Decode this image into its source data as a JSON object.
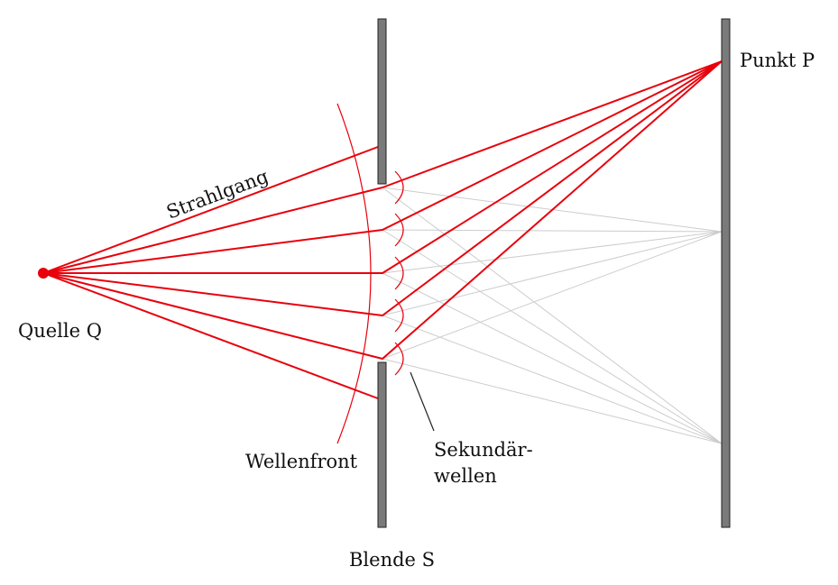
{
  "labels": {
    "source": "Quelle Q",
    "point": "Punkt P",
    "ray_path": "Strahlgang",
    "wavefront": "Wellenfront",
    "secondary_line1": "Sekundär-",
    "secondary_line2": "wellen",
    "aperture": "Blende S"
  },
  "colors": {
    "ray": "#e8000b",
    "gray_ray": "#cccccc",
    "bar": "#7a7a7a",
    "leader": "#222222"
  }
}
